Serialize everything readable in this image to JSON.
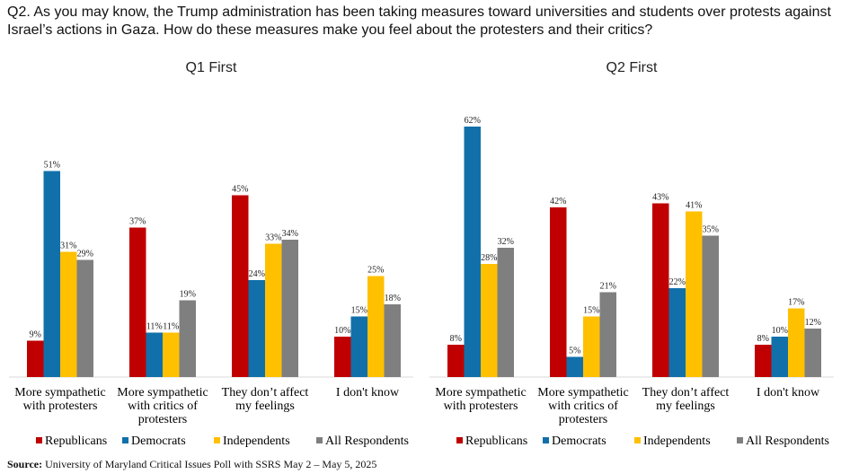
{
  "question": "Q2. As you may know, the Trump administration has been taking measures toward universities and students over protests against Israel’s actions in Gaza. How do these measures make you feel about the protesters and their critics?",
  "source": {
    "label": "Source:",
    "text": "University of Maryland Critical Issues Poll with SSRS May 2 – May 5, 2025"
  },
  "colors": {
    "Republicans": "#c00000",
    "Democrats": "#1170aa",
    "Independents": "#ffc000",
    "All Respondents": "#7f7f7f"
  },
  "chart_data": [
    {
      "type": "bar",
      "title": "Q1 First",
      "categories": [
        [
          "More sympathetic",
          "with protesters"
        ],
        [
          "More sympathetic",
          "with critics of",
          "protesters"
        ],
        [
          "They don’t affect",
          "my feelings"
        ],
        [
          "I don't know"
        ]
      ],
      "series": [
        {
          "name": "Republicans",
          "values": [
            9,
            37,
            45,
            10
          ]
        },
        {
          "name": "Democrats",
          "values": [
            51,
            11,
            24,
            15
          ]
        },
        {
          "name": "Independents",
          "values": [
            31,
            11,
            33,
            25
          ]
        },
        {
          "name": "All Respondents",
          "values": [
            29,
            19,
            34,
            18
          ]
        }
      ],
      "ylim": [
        0,
        70
      ],
      "legend": "bottom",
      "grid": false
    },
    {
      "type": "bar",
      "title": "Q2 First",
      "categories": [
        [
          "More sympathetic",
          "with protesters"
        ],
        [
          "More sympathetic",
          "with critics of",
          "protesters"
        ],
        [
          "They don’t affect",
          "my feelings"
        ],
        [
          "I don't know"
        ]
      ],
      "series": [
        {
          "name": "Republicans",
          "values": [
            8,
            42,
            43,
            8
          ]
        },
        {
          "name": "Democrats",
          "values": [
            62,
            5,
            22,
            10
          ]
        },
        {
          "name": "Independents",
          "values": [
            28,
            15,
            41,
            17
          ]
        },
        {
          "name": "All Respondents",
          "values": [
            32,
            21,
            35,
            12
          ]
        }
      ],
      "ylim": [
        0,
        70
      ],
      "legend": "bottom",
      "grid": false
    }
  ]
}
